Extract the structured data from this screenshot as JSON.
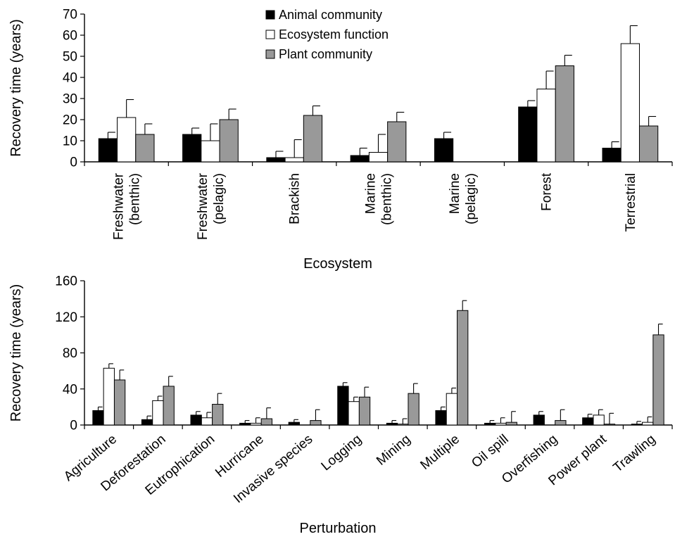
{
  "colors": {
    "animal": "#000000",
    "function": "#ffffff",
    "plant": "#999999",
    "axis": "#000000"
  },
  "legend": {
    "placement": "top-center",
    "items": [
      "Animal community",
      "Ecosystem function",
      "Plant community"
    ]
  },
  "chart_data": [
    {
      "type": "bar",
      "title": "",
      "xlabel": "Ecosystem",
      "ylabel": "Recovery time (years)",
      "ylim": [
        0,
        70
      ],
      "yticks": [
        0,
        10,
        20,
        30,
        40,
        50,
        60,
        70
      ],
      "grid": false,
      "categories": [
        "Freshwater\n(benthic)",
        "Freshwater\n(pelagic)",
        "Brackish",
        "Marine\n(benthic)",
        "Marine\n(pelagic)",
        "Forest",
        "Terrestrial"
      ],
      "series": [
        {
          "name": "Animal community",
          "values": [
            11,
            13,
            2,
            3,
            11,
            26,
            6.5
          ],
          "errors": [
            3,
            3,
            3,
            3.5,
            3,
            3,
            3
          ]
        },
        {
          "name": "Ecosystem function",
          "values": [
            21,
            10,
            2,
            4.5,
            null,
            34.5,
            56
          ],
          "errors": [
            8.5,
            8,
            8.5,
            8.5,
            null,
            8.5,
            8.5
          ]
        },
        {
          "name": "Plant community",
          "values": [
            13,
            20,
            22,
            19,
            null,
            45.5,
            17
          ],
          "errors": [
            5,
            5,
            4.5,
            4.5,
            null,
            5,
            4.5
          ]
        }
      ]
    },
    {
      "type": "bar",
      "title": "",
      "xlabel": "Perturbation",
      "ylabel": "Recovery time (years)",
      "ylim": [
        0,
        160
      ],
      "yticks": [
        0,
        40,
        80,
        120,
        160
      ],
      "grid": false,
      "categories": [
        "Agriculture",
        "Deforestation",
        "Eutrophication",
        "Hurricane",
        "Invasive species",
        "Logging",
        "Mining",
        "Multiple",
        "Oil spill",
        "Overfishing",
        "Power plant",
        "Trawling"
      ],
      "series": [
        {
          "name": "Animal community",
          "values": [
            16,
            6,
            11,
            2,
            3,
            43,
            2,
            16,
            2,
            11,
            8,
            1
          ],
          "errors": [
            4,
            4,
            4,
            3,
            3,
            4,
            3,
            4,
            3,
            4,
            4,
            3
          ]
        },
        {
          "name": "Ecosystem function",
          "values": [
            63,
            27,
            8,
            2,
            null,
            26,
            1,
            35,
            2,
            null,
            11,
            3
          ],
          "errors": [
            5,
            5,
            6,
            6,
            null,
            5,
            6,
            6,
            6,
            null,
            6,
            6
          ]
        },
        {
          "name": "Plant community",
          "values": [
            50,
            43,
            23,
            7,
            5,
            31,
            35,
            127,
            3,
            5,
            1,
            100
          ],
          "errors": [
            11,
            11,
            12,
            12,
            12,
            11,
            11,
            11,
            12,
            12,
            12,
            12
          ]
        }
      ]
    }
  ]
}
